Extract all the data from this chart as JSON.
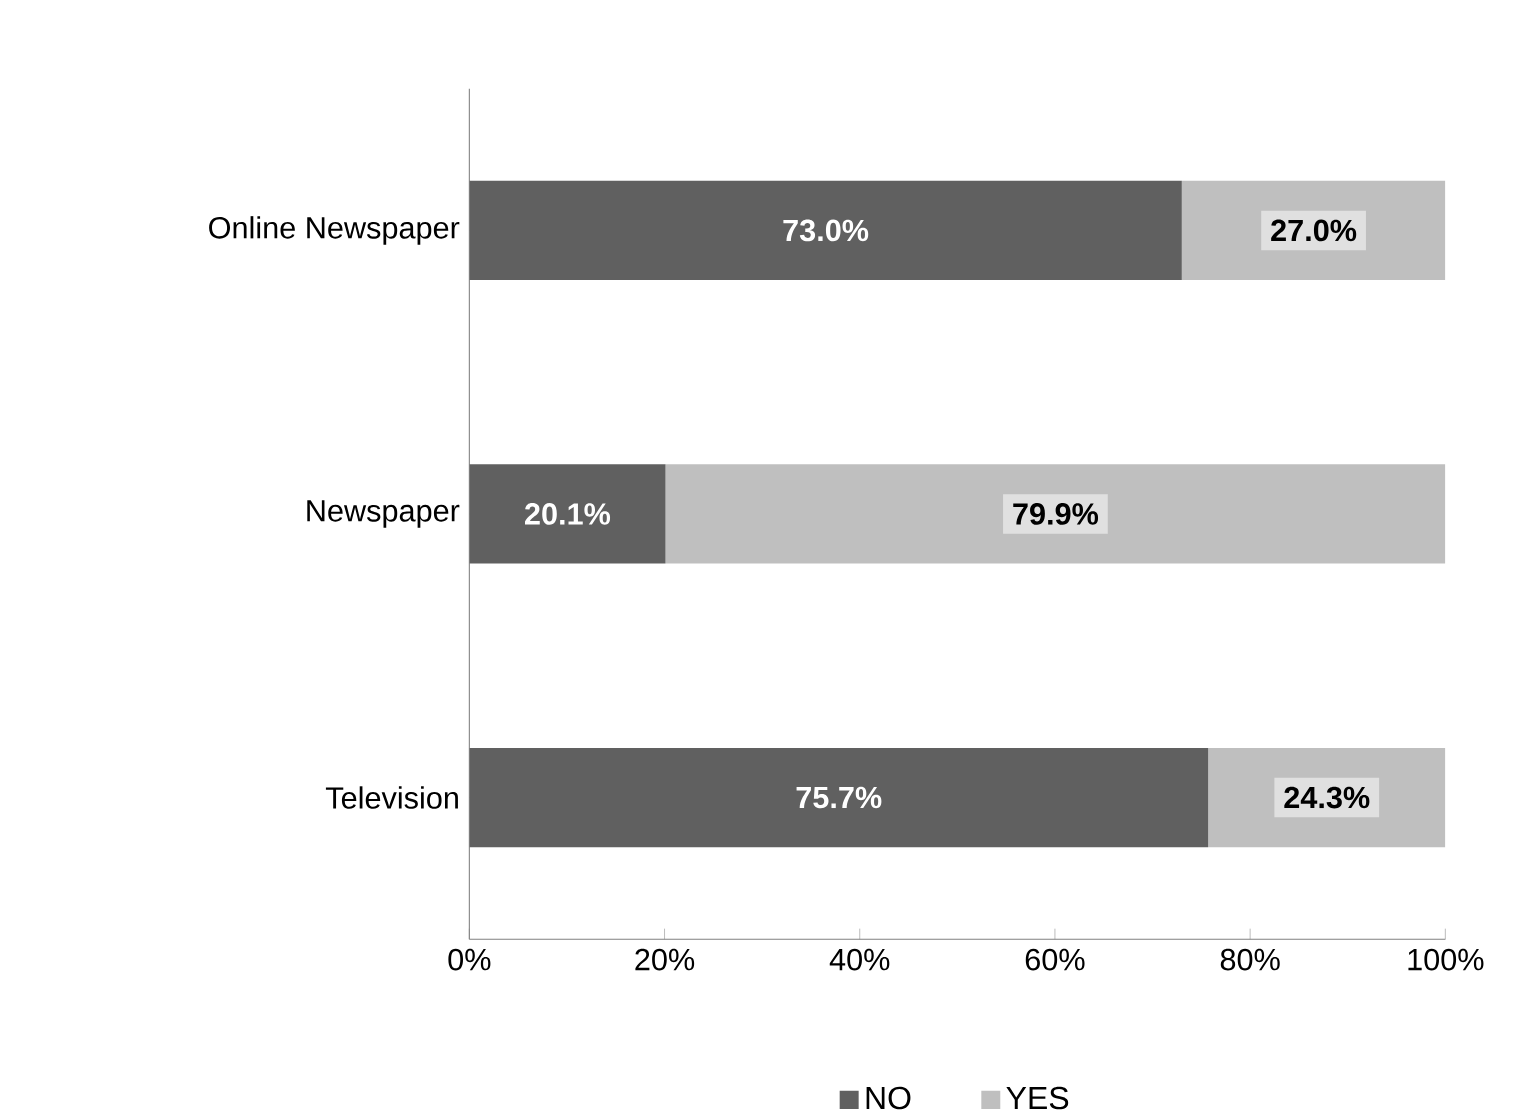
{
  "chart_data": {
    "type": "bar",
    "orientation": "horizontal",
    "stacked": true,
    "categories": [
      "Online Newspaper",
      "Newspaper",
      "Television"
    ],
    "series": [
      {
        "name": "NO",
        "color": "#606060",
        "values": [
          73.0,
          20.1,
          75.7
        ],
        "value_labels": [
          "73.0%",
          "20.1%",
          "75.7%"
        ]
      },
      {
        "name": "YES",
        "color": "#bfbfbf",
        "values": [
          27.0,
          79.9,
          24.3
        ],
        "value_labels": [
          "27.0%",
          "79.9%",
          "24.3%"
        ]
      }
    ],
    "xlim": [
      0,
      100
    ],
    "xticks": [
      {
        "value": 0,
        "label": "0%"
      },
      {
        "value": 20,
        "label": "20%"
      },
      {
        "value": 40,
        "label": "40%"
      },
      {
        "value": 60,
        "label": "60%"
      },
      {
        "value": 80,
        "label": "80%"
      },
      {
        "value": 100,
        "label": "100%"
      }
    ],
    "grid": false,
    "legend": "bottom"
  }
}
